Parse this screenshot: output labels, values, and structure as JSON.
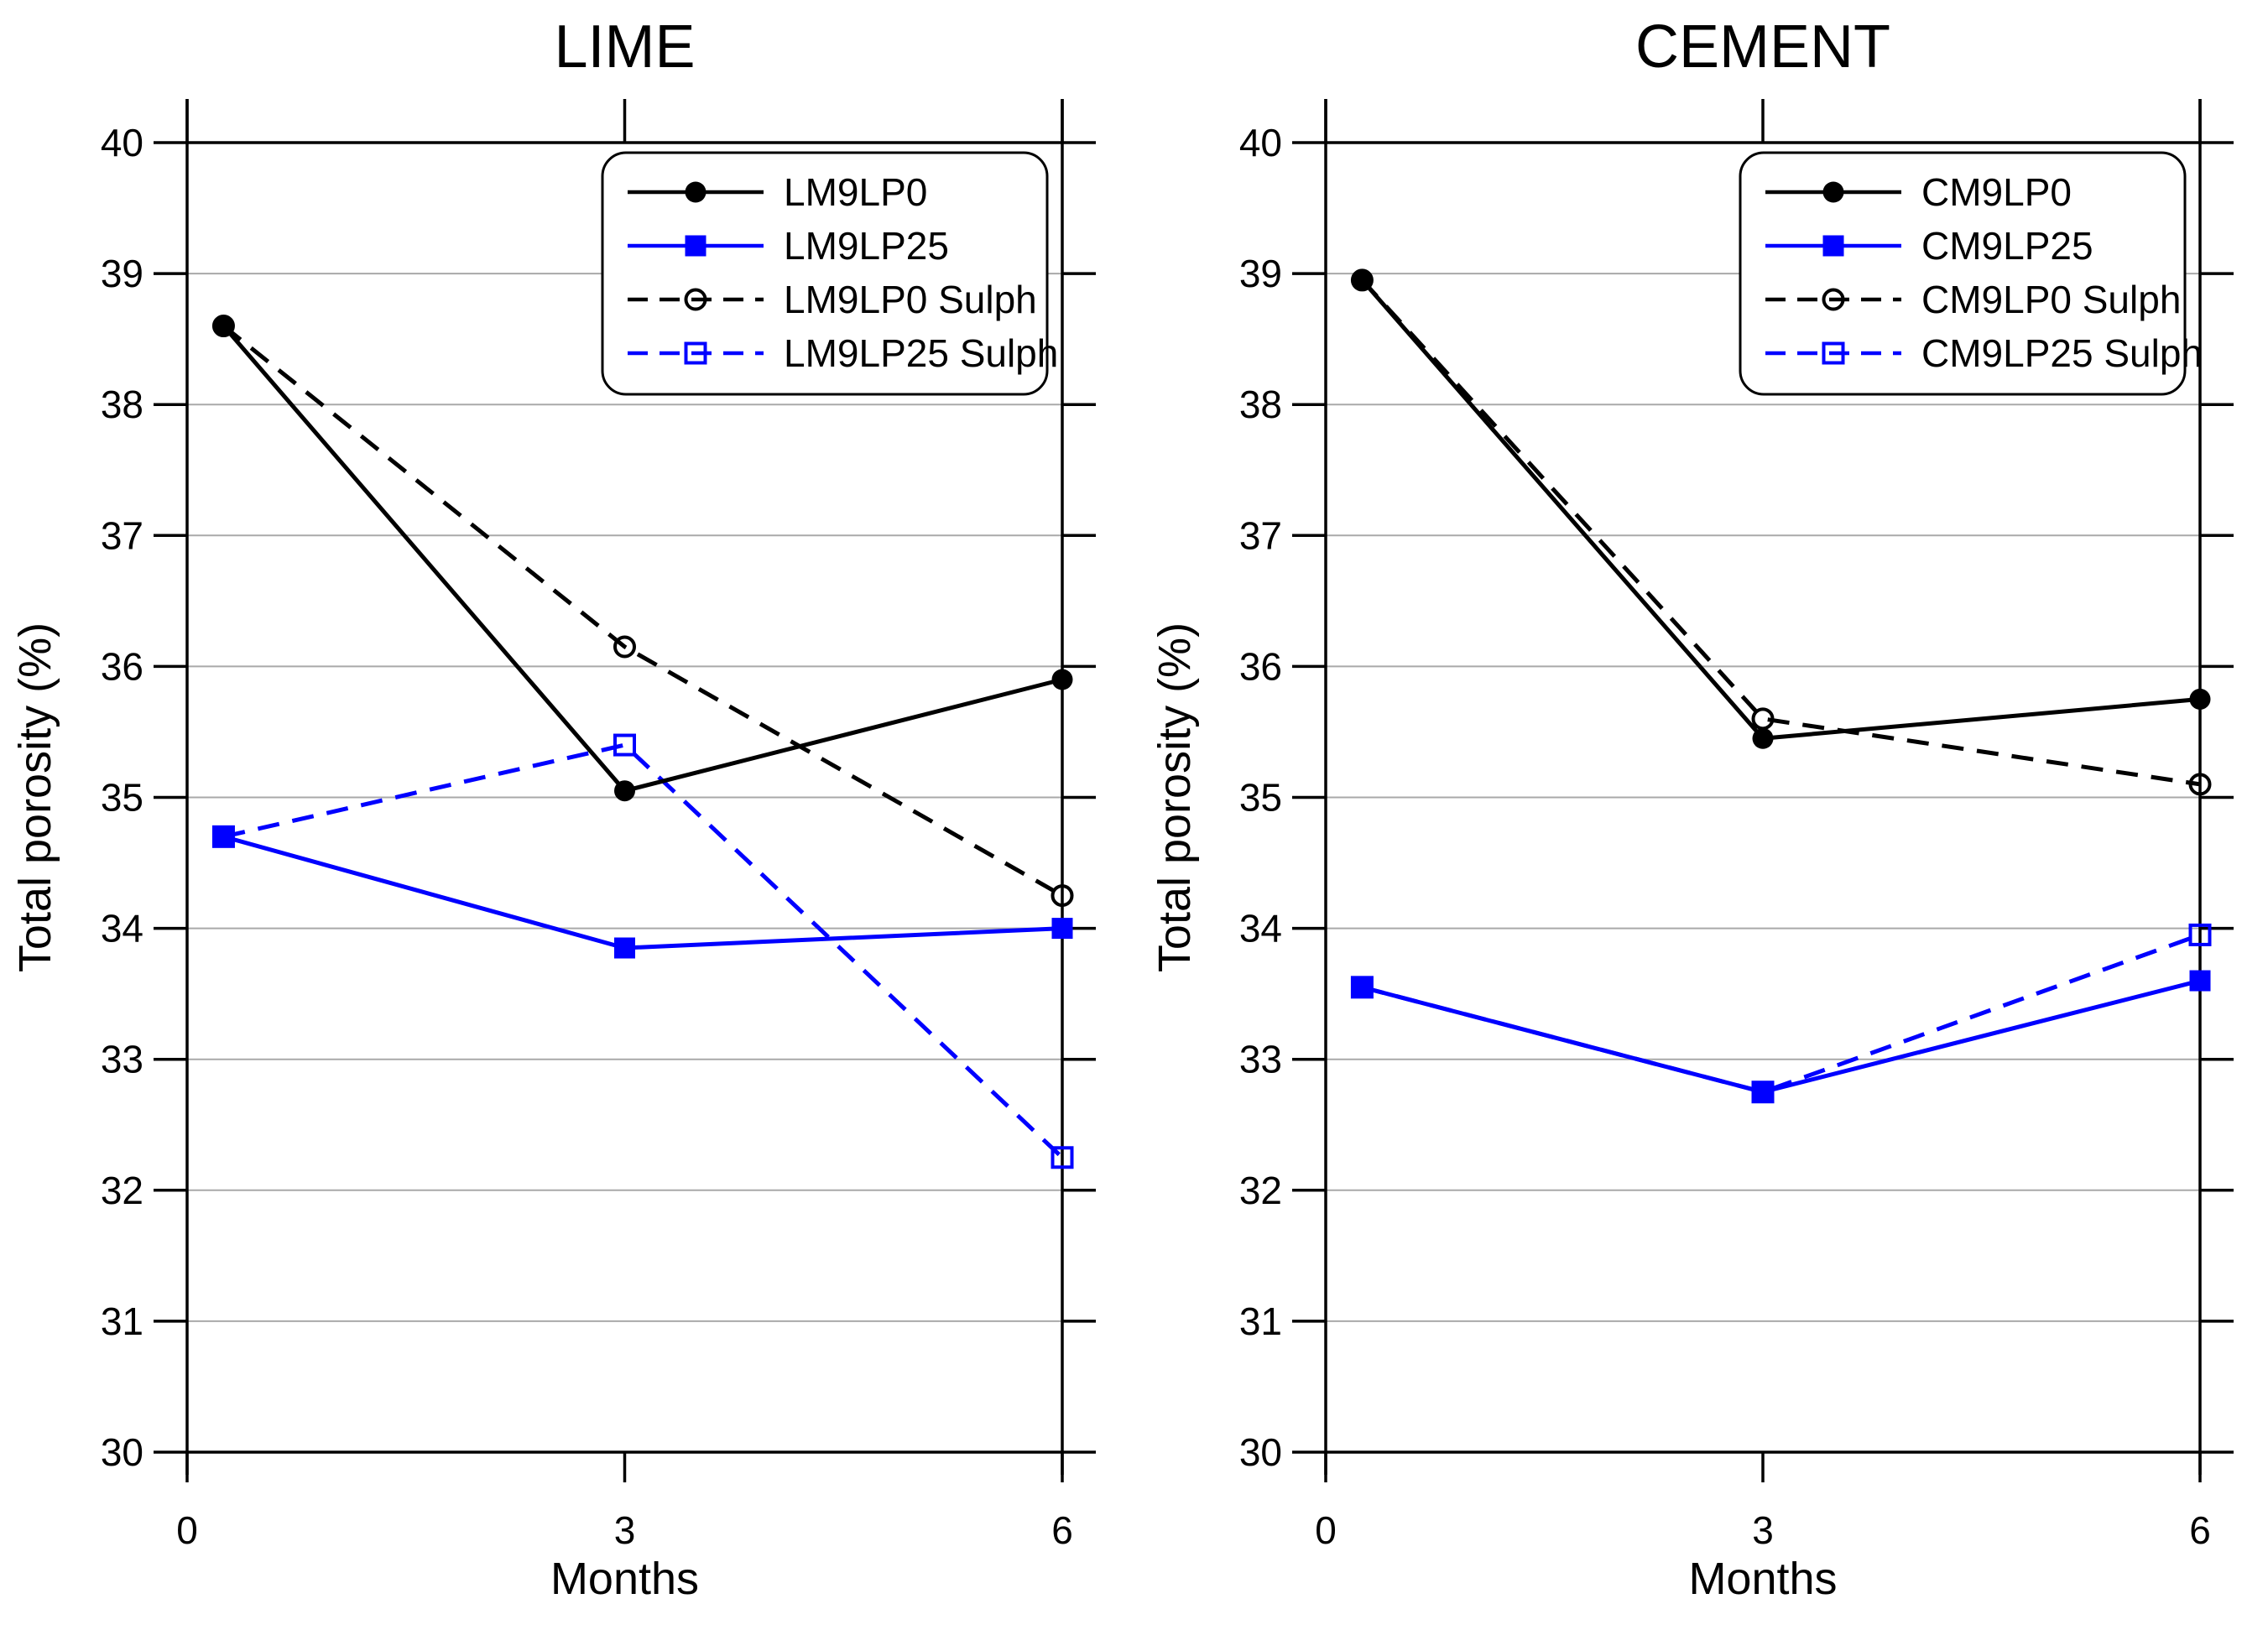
{
  "figure": {
    "background": "#ffffff",
    "text_color": "#000000",
    "gridline_color": "#a9a9a9",
    "axis_color": "#000000",
    "blue_accent": "#0000ff"
  },
  "chart_data": [
    {
      "type": "line",
      "title": "LIME",
      "xlabel": "Months",
      "ylabel": "Total porosity (%)",
      "xlim": [
        0,
        6
      ],
      "ylim": [
        30,
        40
      ],
      "x_ticks": [
        0,
        3,
        6
      ],
      "y_ticks": [
        30,
        31,
        32,
        33,
        34,
        35,
        36,
        37,
        38,
        39,
        40
      ],
      "grid": true,
      "legend_position": "upper right",
      "x": [
        0.25,
        3,
        6
      ],
      "series": [
        {
          "name": "LM9LP0",
          "color": "#000000",
          "line_style": "solid",
          "marker": "filled-circle",
          "values": [
            38.6,
            35.05,
            35.9
          ]
        },
        {
          "name": "LM9LP25",
          "color": "#0000ff",
          "line_style": "solid",
          "marker": "filled-square",
          "values": [
            34.7,
            33.85,
            34.0
          ]
        },
        {
          "name": "LM9LP0 Sulph",
          "color": "#000000",
          "line_style": "dashed",
          "marker": "open-circle",
          "values": [
            38.6,
            36.15,
            34.25
          ]
        },
        {
          "name": "LM9LP25 Sulph",
          "color": "#0000ff",
          "line_style": "dashed",
          "marker": "open-square",
          "values": [
            34.7,
            35.4,
            32.25
          ]
        }
      ]
    },
    {
      "type": "line",
      "title": "CEMENT",
      "xlabel": "Months",
      "ylabel": "Total porosity (%)",
      "xlim": [
        0,
        6
      ],
      "ylim": [
        30,
        40
      ],
      "x_ticks": [
        0,
        3,
        6
      ],
      "y_ticks": [
        30,
        31,
        32,
        33,
        34,
        35,
        36,
        37,
        38,
        39,
        40
      ],
      "grid": true,
      "legend_position": "upper right",
      "x": [
        0.25,
        3,
        6
      ],
      "series": [
        {
          "name": "CM9LP0",
          "color": "#000000",
          "line_style": "solid",
          "marker": "filled-circle",
          "values": [
            38.95,
            35.45,
            35.75
          ]
        },
        {
          "name": "CM9LP25",
          "color": "#0000ff",
          "line_style": "solid",
          "marker": "filled-square",
          "values": [
            33.55,
            32.75,
            33.6
          ]
        },
        {
          "name": "CM9LP0 Sulph",
          "color": "#000000",
          "line_style": "dashed",
          "marker": "open-circle",
          "values": [
            38.95,
            35.6,
            35.1
          ]
        },
        {
          "name": "CM9LP25 Sulph",
          "color": "#0000ff",
          "line_style": "dashed",
          "marker": "open-square",
          "values": [
            33.55,
            32.75,
            33.95
          ]
        }
      ]
    }
  ]
}
